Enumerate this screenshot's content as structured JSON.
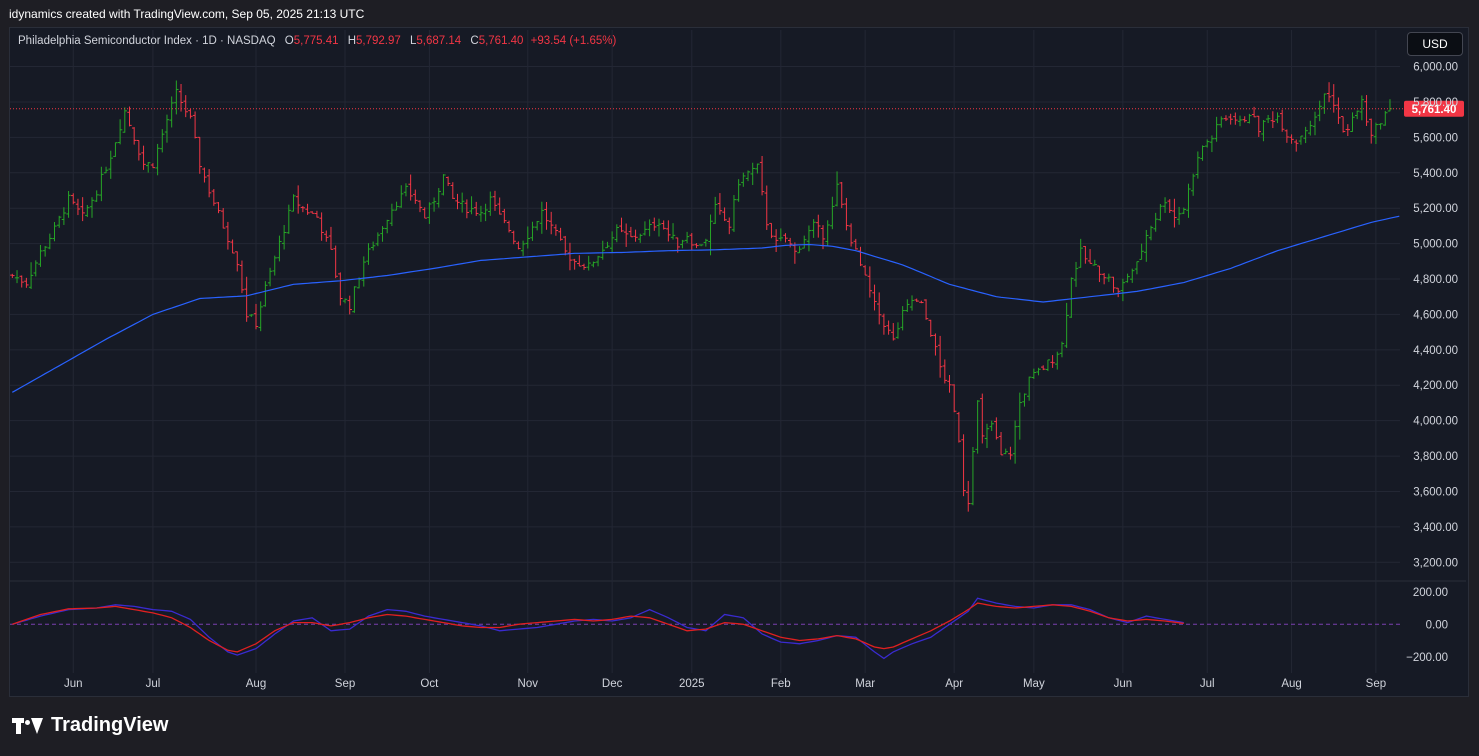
{
  "attribution": "idynamics created with TradingView.com, Sep 05, 2025 21:13 UTC",
  "legend": {
    "symbol": "Philadelphia Semiconductor Index · 1D · NASDAQ",
    "open_label": "O",
    "open": "5,775.41",
    "high_label": "H",
    "high": "5,792.97",
    "low_label": "L",
    "low": "5,687.14",
    "close_label": "C",
    "close": "5,761.40",
    "change": "+93.54 (+1.65%)"
  },
  "currency_button": "USD",
  "brand": "TradingView",
  "colors": {
    "up": "#26a626",
    "down": "#f23645",
    "ma": "#2962ff",
    "oscillator_fast": "#3a2bd0",
    "oscillator_slow": "#e02020",
    "price_tag": "#f23645"
  },
  "chart_data": {
    "type": "ohlc",
    "price_axis": {
      "ylim": [
        3100,
        6150
      ],
      "ticks": [
        3200,
        3400,
        3600,
        3800,
        4000,
        4200,
        4400,
        4600,
        4800,
        5000,
        5200,
        5400,
        5600,
        5800,
        6000
      ],
      "tick_labels": [
        "3,200.00",
        "3,400.00",
        "3,600.00",
        "3,800.00",
        "4,000.00",
        "4,200.00",
        "4,400.00",
        "4,600.00",
        "4,800.00",
        "5,000.00",
        "5,200.00",
        "5,400.00",
        "5,600.00",
        "5,800.00",
        "6,000.00"
      ],
      "last_price": 5761.4,
      "last_price_label": "5,761.40"
    },
    "time_axis": {
      "labels": [
        "Jun",
        "Jul",
        "Aug",
        "Sep",
        "Oct",
        "Nov",
        "Dec",
        "2025",
        "Feb",
        "Mar",
        "Apr",
        "May",
        "Jun",
        "Jul",
        "Aug",
        "Sep"
      ],
      "positions": [
        13,
        30,
        52,
        71,
        89,
        110,
        128,
        145,
        164,
        182,
        201,
        218,
        237,
        255,
        273,
        291
      ]
    },
    "price_anchors": [
      [
        0,
        4820
      ],
      [
        3,
        4780
      ],
      [
        6,
        4950
      ],
      [
        9,
        5080
      ],
      [
        12,
        5250
      ],
      [
        15,
        5150
      ],
      [
        18,
        5300
      ],
      [
        21,
        5500
      ],
      [
        24,
        5750
      ],
      [
        26,
        5600
      ],
      [
        28,
        5450
      ],
      [
        30,
        5450
      ],
      [
        33,
        5700
      ],
      [
        35,
        5850
      ],
      [
        36,
        5800
      ],
      [
        38,
        5700
      ],
      [
        40,
        5450
      ],
      [
        42,
        5300
      ],
      [
        45,
        5100
      ],
      [
        48,
        4900
      ],
      [
        50,
        4600
      ],
      [
        52,
        4550
      ],
      [
        54,
        4750
      ],
      [
        57,
        5000
      ],
      [
        60,
        5250
      ],
      [
        62,
        5200
      ],
      [
        65,
        5150
      ],
      [
        68,
        4950
      ],
      [
        70,
        4700
      ],
      [
        72,
        4650
      ],
      [
        75,
        4900
      ],
      [
        78,
        5050
      ],
      [
        81,
        5200
      ],
      [
        84,
        5300
      ],
      [
        86,
        5250
      ],
      [
        88,
        5150
      ],
      [
        90,
        5250
      ],
      [
        92,
        5380
      ],
      [
        94,
        5250
      ],
      [
        97,
        5200
      ],
      [
        100,
        5180
      ],
      [
        102,
        5250
      ],
      [
        104,
        5150
      ],
      [
        106,
        5080
      ],
      [
        108,
        4980
      ],
      [
        110,
        5050
      ],
      [
        113,
        5180
      ],
      [
        116,
        5050
      ],
      [
        118,
        4950
      ],
      [
        120,
        4900
      ],
      [
        123,
        4870
      ],
      [
        126,
        4970
      ],
      [
        129,
        5070
      ],
      [
        132,
        5030
      ],
      [
        135,
        5070
      ],
      [
        138,
        5130
      ],
      [
        140,
        5050
      ],
      [
        142,
        5000
      ],
      [
        144,
        5050
      ],
      [
        146,
        4980
      ],
      [
        148,
        5030
      ],
      [
        150,
        5200
      ],
      [
        153,
        5100
      ],
      [
        155,
        5350
      ],
      [
        157,
        5400
      ],
      [
        159,
        5430
      ],
      [
        161,
        5120
      ],
      [
        163,
        5000
      ],
      [
        165,
        5030
      ],
      [
        167,
        4950
      ],
      [
        169,
        5030
      ],
      [
        171,
        5100
      ],
      [
        173,
        5050
      ],
      [
        175,
        5200
      ],
      [
        176,
        5320
      ],
      [
        178,
        5100
      ],
      [
        180,
        4950
      ],
      [
        182,
        4800
      ],
      [
        184,
        4650
      ],
      [
        186,
        4550
      ],
      [
        188,
        4450
      ],
      [
        190,
        4600
      ],
      [
        192,
        4680
      ],
      [
        194,
        4650
      ],
      [
        196,
        4500
      ],
      [
        198,
        4300
      ],
      [
        200,
        4180
      ],
      [
        202,
        3900
      ],
      [
        203,
        3620
      ],
      [
        204,
        3550
      ],
      [
        205,
        3850
      ],
      [
        206,
        4100
      ],
      [
        207,
        3900
      ],
      [
        209,
        3980
      ],
      [
        211,
        3800
      ],
      [
        213,
        3820
      ],
      [
        215,
        4100
      ],
      [
        217,
        4230
      ],
      [
        220,
        4300
      ],
      [
        222,
        4350
      ],
      [
        224,
        4430
      ],
      [
        226,
        4800
      ],
      [
        228,
        4950
      ],
      [
        230,
        4880
      ],
      [
        232,
        4850
      ],
      [
        234,
        4800
      ],
      [
        236,
        4720
      ],
      [
        238,
        4820
      ],
      [
        240,
        4880
      ],
      [
        242,
        5050
      ],
      [
        244,
        5150
      ],
      [
        246,
        5250
      ],
      [
        248,
        5150
      ],
      [
        250,
        5200
      ],
      [
        252,
        5400
      ],
      [
        254,
        5550
      ],
      [
        256,
        5600
      ],
      [
        258,
        5700
      ],
      [
        260,
        5720
      ],
      [
        262,
        5680
      ],
      [
        264,
        5740
      ],
      [
        266,
        5650
      ],
      [
        268,
        5700
      ],
      [
        270,
        5720
      ],
      [
        272,
        5620
      ],
      [
        274,
        5580
      ],
      [
        276,
        5650
      ],
      [
        278,
        5700
      ],
      [
        280,
        5850
      ],
      [
        282,
        5800
      ],
      [
        284,
        5620
      ],
      [
        286,
        5700
      ],
      [
        288,
        5800
      ],
      [
        290,
        5600
      ],
      [
        292,
        5700
      ],
      [
        294,
        5761
      ]
    ],
    "ma_anchors": [
      [
        0,
        4160
      ],
      [
        10,
        4310
      ],
      [
        20,
        4460
      ],
      [
        30,
        4600
      ],
      [
        40,
        4690
      ],
      [
        50,
        4705
      ],
      [
        60,
        4770
      ],
      [
        70,
        4790
      ],
      [
        80,
        4820
      ],
      [
        90,
        4860
      ],
      [
        100,
        4905
      ],
      [
        110,
        4925
      ],
      [
        120,
        4945
      ],
      [
        130,
        4950
      ],
      [
        140,
        4960
      ],
      [
        150,
        4965
      ],
      [
        160,
        4975
      ],
      [
        165,
        4990
      ],
      [
        170,
        4995
      ],
      [
        175,
        4985
      ],
      [
        180,
        4960
      ],
      [
        190,
        4880
      ],
      [
        200,
        4770
      ],
      [
        210,
        4700
      ],
      [
        220,
        4670
      ],
      [
        230,
        4700
      ],
      [
        240,
        4730
      ],
      [
        250,
        4780
      ],
      [
        260,
        4860
      ],
      [
        270,
        4960
      ],
      [
        280,
        5040
      ],
      [
        290,
        5120
      ],
      [
        296,
        5155
      ]
    ],
    "oscillator": {
      "ylim": [
        -300,
        260
      ],
      "ticks": [
        200,
        0,
        -200
      ],
      "tick_labels": [
        "200.00",
        "0.00",
        "−200.00"
      ],
      "fast_anchors": [
        [
          0,
          0
        ],
        [
          6,
          50
        ],
        [
          12,
          90
        ],
        [
          18,
          100
        ],
        [
          22,
          120
        ],
        [
          26,
          110
        ],
        [
          30,
          90
        ],
        [
          34,
          80
        ],
        [
          38,
          30
        ],
        [
          42,
          -80
        ],
        [
          46,
          -170
        ],
        [
          48,
          -190
        ],
        [
          52,
          -150
        ],
        [
          56,
          -60
        ],
        [
          60,
          20
        ],
        [
          64,
          40
        ],
        [
          68,
          -40
        ],
        [
          72,
          -30
        ],
        [
          76,
          50
        ],
        [
          80,
          90
        ],
        [
          84,
          80
        ],
        [
          88,
          50
        ],
        [
          92,
          30
        ],
        [
          96,
          10
        ],
        [
          100,
          -10
        ],
        [
          104,
          -40
        ],
        [
          108,
          -30
        ],
        [
          112,
          -20
        ],
        [
          116,
          0
        ],
        [
          120,
          20
        ],
        [
          124,
          30
        ],
        [
          128,
          20
        ],
        [
          132,
          40
        ],
        [
          136,
          90
        ],
        [
          140,
          40
        ],
        [
          144,
          -20
        ],
        [
          148,
          -40
        ],
        [
          152,
          60
        ],
        [
          156,
          40
        ],
        [
          160,
          -60
        ],
        [
          164,
          -110
        ],
        [
          168,
          -120
        ],
        [
          172,
          -100
        ],
        [
          176,
          -70
        ],
        [
          180,
          -80
        ],
        [
          184,
          -170
        ],
        [
          186,
          -210
        ],
        [
          188,
          -170
        ],
        [
          192,
          -120
        ],
        [
          196,
          -80
        ],
        [
          200,
          0
        ],
        [
          204,
          80
        ],
        [
          206,
          160
        ],
        [
          210,
          130
        ],
        [
          214,
          110
        ],
        [
          218,
          100
        ],
        [
          222,
          120
        ],
        [
          226,
          120
        ],
        [
          230,
          90
        ],
        [
          234,
          40
        ],
        [
          238,
          10
        ],
        [
          242,
          50
        ],
        [
          246,
          30
        ],
        [
          250,
          10
        ]
      ],
      "slow_anchors": [
        [
          0,
          0
        ],
        [
          6,
          60
        ],
        [
          12,
          95
        ],
        [
          18,
          100
        ],
        [
          22,
          110
        ],
        [
          26,
          90
        ],
        [
          30,
          70
        ],
        [
          34,
          40
        ],
        [
          38,
          -20
        ],
        [
          42,
          -100
        ],
        [
          46,
          -160
        ],
        [
          48,
          -170
        ],
        [
          52,
          -120
        ],
        [
          56,
          -40
        ],
        [
          60,
          10
        ],
        [
          64,
          10
        ],
        [
          68,
          -10
        ],
        [
          72,
          10
        ],
        [
          76,
          40
        ],
        [
          80,
          60
        ],
        [
          84,
          50
        ],
        [
          88,
          30
        ],
        [
          92,
          10
        ],
        [
          96,
          -10
        ],
        [
          100,
          -20
        ],
        [
          104,
          -20
        ],
        [
          108,
          0
        ],
        [
          112,
          10
        ],
        [
          116,
          20
        ],
        [
          120,
          30
        ],
        [
          124,
          20
        ],
        [
          128,
          30
        ],
        [
          132,
          50
        ],
        [
          136,
          40
        ],
        [
          140,
          0
        ],
        [
          144,
          -40
        ],
        [
          148,
          -30
        ],
        [
          152,
          10
        ],
        [
          156,
          0
        ],
        [
          160,
          -40
        ],
        [
          164,
          -80
        ],
        [
          168,
          -100
        ],
        [
          172,
          -90
        ],
        [
          176,
          -70
        ],
        [
          180,
          -90
        ],
        [
          184,
          -140
        ],
        [
          186,
          -150
        ],
        [
          188,
          -140
        ],
        [
          192,
          -90
        ],
        [
          196,
          -40
        ],
        [
          200,
          20
        ],
        [
          204,
          90
        ],
        [
          206,
          130
        ],
        [
          210,
          110
        ],
        [
          214,
          100
        ],
        [
          218,
          110
        ],
        [
          222,
          120
        ],
        [
          226,
          110
        ],
        [
          230,
          80
        ],
        [
          234,
          40
        ],
        [
          238,
          20
        ],
        [
          242,
          30
        ],
        [
          246,
          20
        ],
        [
          250,
          5
        ]
      ]
    }
  }
}
